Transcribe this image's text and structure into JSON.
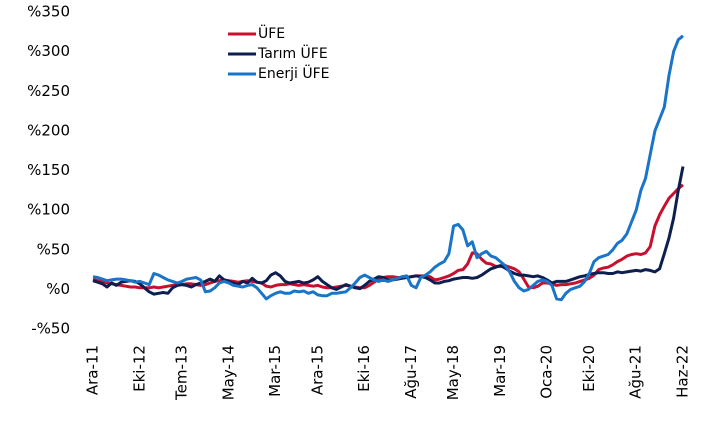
{
  "chart_data": {
    "type": "line",
    "categories": [
      "Ara-11",
      null,
      null,
      null,
      null,
      null,
      null,
      null,
      null,
      null,
      "Eki-12",
      null,
      null,
      null,
      null,
      null,
      null,
      null,
      null,
      "Tem-13",
      null,
      null,
      null,
      null,
      null,
      null,
      null,
      null,
      null,
      "May-14",
      null,
      null,
      null,
      null,
      null,
      null,
      null,
      null,
      null,
      "Mar-15",
      null,
      null,
      null,
      null,
      null,
      null,
      null,
      null,
      "Ara-15",
      null,
      null,
      null,
      null,
      null,
      null,
      null,
      null,
      null,
      "Eki-16",
      null,
      null,
      null,
      null,
      null,
      null,
      null,
      null,
      null,
      "Ağu-17",
      null,
      null,
      null,
      null,
      null,
      null,
      null,
      null,
      "May-18",
      null,
      null,
      null,
      null,
      null,
      null,
      null,
      null,
      null,
      "Mar-19",
      null,
      null,
      null,
      null,
      null,
      null,
      null,
      null,
      null,
      "Oca-20",
      null,
      null,
      null,
      null,
      null,
      null,
      null,
      null,
      "Eki-20",
      null,
      null,
      null,
      null,
      null,
      null,
      null,
      null,
      null,
      "Ağu-21",
      null,
      null,
      null,
      null,
      null,
      null,
      null,
      null,
      null,
      "Haz-22"
    ],
    "series": [
      {
        "name": "ÜFE",
        "color": "#c8102e",
        "values": [
          13,
          11,
          10,
          8,
          7,
          6,
          5,
          4,
          3,
          3,
          2,
          2,
          2,
          3,
          2,
          3,
          4,
          5,
          6,
          6,
          7,
          7,
          6,
          5,
          6,
          8,
          10,
          11,
          12,
          11,
          10,
          9,
          10,
          11,
          10,
          9,
          8,
          4,
          3,
          5,
          6,
          6,
          7,
          6,
          5,
          6,
          5,
          4,
          5,
          3,
          2,
          2,
          3,
          4,
          5,
          4,
          3,
          2,
          2,
          5,
          9,
          13,
          15,
          16,
          16,
          15,
          15,
          15,
          16,
          17,
          17,
          17,
          16,
          12,
          13,
          15,
          17,
          20,
          24,
          25,
          32,
          46,
          45,
          38,
          33,
          32,
          29,
          29,
          30,
          28,
          26,
          22,
          13,
          3,
          2,
          4,
          8,
          8,
          7,
          5,
          6,
          6,
          7,
          8,
          10,
          12,
          14,
          18,
          25,
          27,
          28,
          31,
          35,
          38,
          42,
          44,
          45,
          44,
          46,
          54,
          80,
          94,
          105,
          115,
          121,
          127,
          132
        ]
      },
      {
        "name": "Tarım ÜFE",
        "color": "#0c1f4f",
        "values": [
          11,
          9,
          7,
          3,
          8,
          5,
          9,
          10,
          11,
          10,
          7,
          2,
          -3,
          -6,
          -5,
          -4,
          -5,
          2,
          5,
          6,
          5,
          3,
          6,
          8,
          10,
          13,
          10,
          17,
          12,
          10,
          8,
          6,
          10,
          8,
          14,
          9,
          8,
          11,
          18,
          21,
          17,
          10,
          8,
          9,
          10,
          8,
          9,
          12,
          16,
          10,
          6,
          2,
          0,
          3,
          6,
          4,
          2,
          1,
          5,
          10,
          13,
          16,
          15,
          12,
          12,
          13,
          14,
          15,
          16,
          17,
          16,
          15,
          12,
          8,
          8,
          10,
          11,
          13,
          14,
          15,
          15,
          14,
          15,
          18,
          22,
          26,
          28,
          30,
          27,
          23,
          20,
          18,
          18,
          17,
          16,
          17,
          15,
          12,
          8,
          10,
          10,
          10,
          12,
          14,
          16,
          17,
          19,
          20,
          21,
          21,
          20,
          20,
          22,
          21,
          22,
          23,
          24,
          23,
          25,
          24,
          22,
          26,
          45,
          65,
          90,
          125,
          155
        ]
      },
      {
        "name": "Enerji ÜFE",
        "color": "#1a75c9",
        "values": [
          16,
          15,
          13,
          11,
          12,
          13,
          13,
          12,
          11,
          9,
          10,
          8,
          6,
          20,
          18,
          15,
          12,
          10,
          8,
          10,
          13,
          14,
          15,
          12,
          -3,
          -2,
          2,
          8,
          10,
          8,
          5,
          4,
          3,
          5,
          6,
          2,
          -5,
          -12,
          -8,
          -5,
          -3,
          -5,
          -5,
          -2,
          -3,
          -2,
          -5,
          -3,
          -7,
          -8,
          -8,
          -5,
          -5,
          -4,
          -3,
          2,
          8,
          15,
          18,
          15,
          12,
          10,
          12,
          10,
          12,
          14,
          16,
          17,
          5,
          2,
          15,
          18,
          22,
          28,
          32,
          35,
          45,
          80,
          82,
          75,
          55,
          60,
          40,
          45,
          48,
          42,
          40,
          35,
          30,
          22,
          10,
          2,
          -2,
          0,
          5,
          10,
          12,
          10,
          5,
          -12,
          -13,
          -5,
          0,
          2,
          4,
          10,
          20,
          35,
          40,
          42,
          44,
          50,
          58,
          62,
          70,
          85,
          100,
          125,
          140,
          170,
          200,
          215,
          230,
          270,
          300,
          315,
          320
        ]
      }
    ],
    "ylim": [
      -50,
      350
    ],
    "yticks": [
      {
        "value": -50,
        "label": "-%50"
      },
      {
        "value": 0,
        "label": "%0"
      },
      {
        "value": 50,
        "label": "%50"
      },
      {
        "value": 100,
        "label": "%100"
      },
      {
        "value": 150,
        "label": "%150"
      },
      {
        "value": 200,
        "label": "%200"
      },
      {
        "value": 250,
        "label": "%250"
      },
      {
        "value": 300,
        "label": "%300"
      },
      {
        "value": 350,
        "label": "%350"
      }
    ],
    "grid": false
  }
}
